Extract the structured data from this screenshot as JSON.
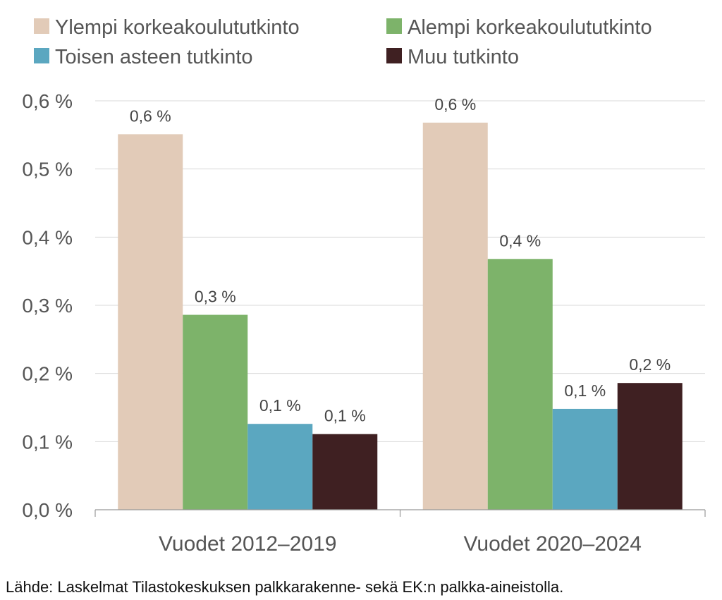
{
  "chart_data": {
    "type": "bar",
    "categories": [
      "Vuodet 2012–2019",
      "Vuodet 2020–2024"
    ],
    "series": [
      {
        "name": "Ylempi korkeakoulututkinto",
        "values": [
          0.551,
          0.568
        ],
        "labels": [
          "0,6 %",
          "0,6 %"
        ],
        "color": "#e2cbb8"
      },
      {
        "name": "Alempi korkeakoulututkinto",
        "values": [
          0.286,
          0.368
        ],
        "labels": [
          "0,3 %",
          "0,4 %"
        ],
        "color": "#7db36a"
      },
      {
        "name": "Toisen asteen tutkinto",
        "values": [
          0.126,
          0.148
        ],
        "labels": [
          "0,1 %",
          "0,1 %"
        ],
        "color": "#5ba7c0"
      },
      {
        "name": "Muu tutkinto",
        "values": [
          0.111,
          0.186
        ],
        "labels": [
          "0,1 %",
          "0,2 %"
        ],
        "color": "#3f2022"
      }
    ],
    "yticks": [
      0,
      0.1,
      0.2,
      0.3,
      0.4,
      0.5,
      0.6
    ],
    "ytick_labels": [
      "0,0 %",
      "0,1 %",
      "0,2 %",
      "0,3 %",
      "0,4 %",
      "0,5 %",
      "0,6 %"
    ],
    "ylim": [
      0,
      0.6
    ],
    "grid": true,
    "legend": "top",
    "title": "",
    "xlabel": "",
    "ylabel": ""
  },
  "source": "Lähde: Laskelmat Tilastokeskuksen palkkarakenne- sekä EK:n palkka-aineistolla."
}
